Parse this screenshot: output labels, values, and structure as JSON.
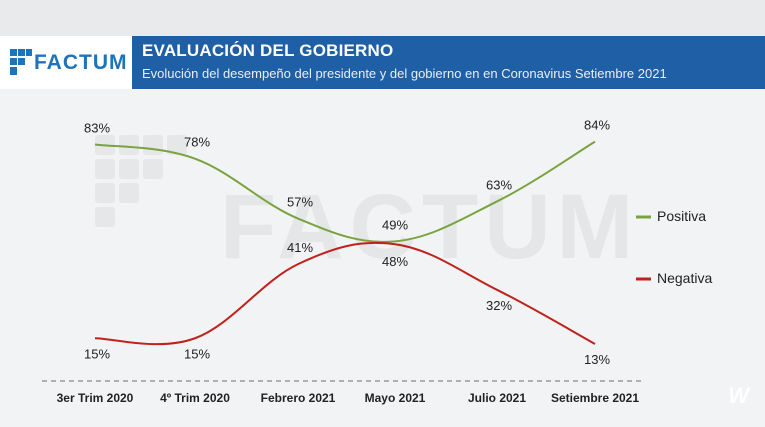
{
  "brand": {
    "name": "FACTUM",
    "watermark": "FACTUM",
    "corner_logo": "W"
  },
  "header": {
    "title": "EVALUACIÓN DEL GOBIERNO",
    "subtitle": "Evolución del desempeño del presidente y del gobierno en  en Coronavirus Setiembre 2021"
  },
  "colors": {
    "header": "#1f5fa6",
    "positiva": "#7aa33f",
    "negativa": "#c0211b",
    "brand": "#1f73b8"
  },
  "chart_data": {
    "type": "line",
    "title": "EVALUACIÓN DEL GOBIERNO",
    "categories": [
      "3er Trim 2020",
      "4º Trim 2020",
      "Febrero 2021",
      "Mayo 2021",
      "Julio 2021",
      "Setiembre 2021"
    ],
    "series": [
      {
        "name": "Positiva",
        "values": [
          83,
          78,
          57,
          49,
          63,
          84
        ],
        "labels": [
          "83%",
          "78%",
          "57%",
          "49%",
          "63%",
          "84%"
        ]
      },
      {
        "name": "Negativa",
        "values": [
          15,
          15,
          41,
          48,
          32,
          13
        ],
        "labels": [
          "15%",
          "15%",
          "41%",
          "48%",
          "32%",
          "13%"
        ]
      }
    ],
    "ylim": [
      0,
      100
    ],
    "legend": "right",
    "grid": false,
    "xlabel": "",
    "ylabel": ""
  }
}
